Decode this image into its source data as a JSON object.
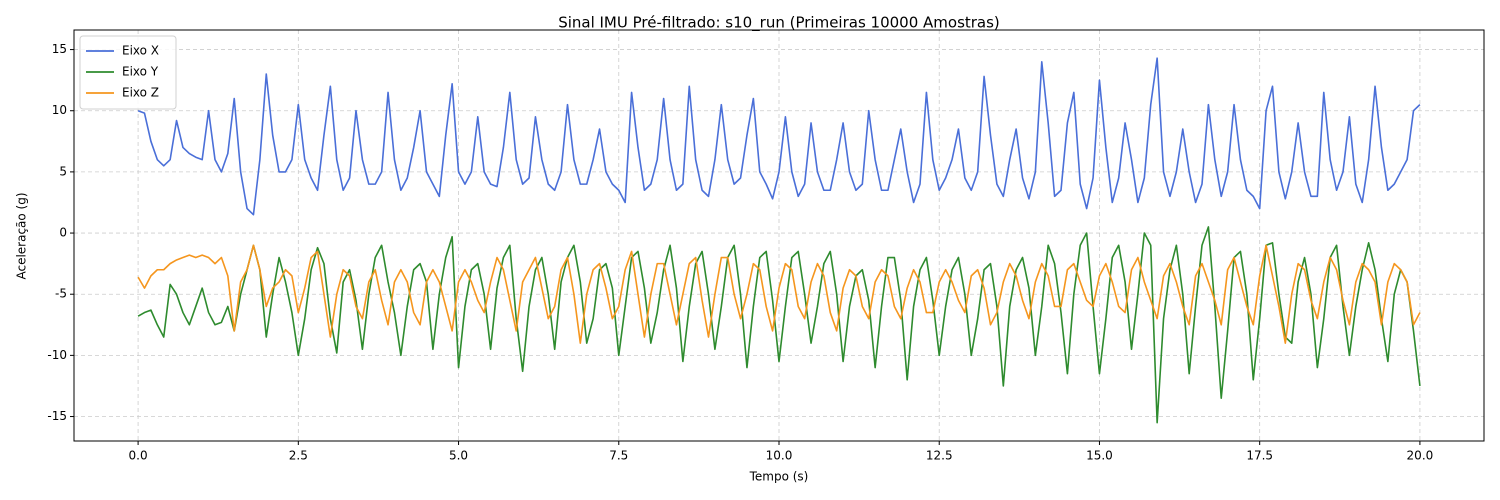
{
  "chart_data": {
    "type": "line",
    "title": "Sinal IMU Pré-filtrado: s10_run (Primeiras 10000 Amostras)",
    "x_label": "Tempo (s)",
    "y_label": "Aceleração (g)",
    "xlim": [
      -1.0,
      21.0
    ],
    "ylim": [
      -17.0,
      16.6
    ],
    "xticks": [
      {
        "value": 0,
        "label": "0.0"
      },
      2.5,
      {
        "value": 5,
        "label": "5.0"
      },
      7.5,
      {
        "value": 10,
        "label": "10.0"
      },
      12.5,
      {
        "value": 15,
        "label": "15.0"
      },
      17.5,
      {
        "value": 20,
        "label": "20.0"
      }
    ],
    "yticks": [
      -15,
      -10,
      -5,
      0,
      5,
      10,
      15
    ],
    "grid": true,
    "legend": "upper left",
    "x": [
      0,
      0.1,
      0.2,
      0.3,
      0.4,
      0.5,
      0.6,
      0.7,
      0.8,
      0.9,
      1,
      1.1,
      1.2,
      1.3,
      1.4,
      1.5,
      1.6,
      1.7,
      1.8,
      1.9,
      2,
      2.1,
      2.2,
      2.3,
      2.4,
      2.5,
      2.6,
      2.7,
      2.8,
      2.9,
      3,
      3.1,
      3.2,
      3.3,
      3.4,
      3.5,
      3.6,
      3.7,
      3.8,
      3.9,
      4,
      4.1,
      4.2,
      4.3,
      4.4,
      4.5,
      4.6,
      4.7,
      4.8,
      4.9,
      5,
      5.1,
      5.2,
      5.3,
      5.4,
      5.5,
      5.6,
      5.7,
      5.8,
      5.9,
      6,
      6.1,
      6.2,
      6.3,
      6.4,
      6.5,
      6.6,
      6.7,
      6.8,
      6.9,
      7,
      7.1,
      7.2,
      7.3,
      7.4,
      7.5,
      7.6,
      7.7,
      7.8,
      7.9,
      8,
      8.1,
      8.2,
      8.3,
      8.4,
      8.5,
      8.6,
      8.7,
      8.8,
      8.9,
      9,
      9.1,
      9.2,
      9.3,
      9.4,
      9.5,
      9.6,
      9.7,
      9.8,
      9.9,
      10,
      10.1,
      10.2,
      10.3,
      10.4,
      10.5,
      10.6,
      10.7,
      10.8,
      10.9,
      11,
      11.1,
      11.2,
      11.3,
      11.4,
      11.5,
      11.6,
      11.7,
      11.8,
      11.9,
      12,
      12.1,
      12.2,
      12.3,
      12.4,
      12.5,
      12.6,
      12.7,
      12.8,
      12.9,
      13,
      13.1,
      13.2,
      13.3,
      13.4,
      13.5,
      13.6,
      13.7,
      13.8,
      13.9,
      14,
      14.1,
      14.2,
      14.3,
      14.4,
      14.5,
      14.6,
      14.7,
      14.8,
      14.9,
      15,
      15.1,
      15.2,
      15.3,
      15.4,
      15.5,
      15.6,
      15.7,
      15.8,
      15.9,
      16,
      16.1,
      16.2,
      16.3,
      16.4,
      16.5,
      16.6,
      16.7,
      16.8,
      16.9,
      17,
      17.1,
      17.2,
      17.3,
      17.4,
      17.5,
      17.6,
      17.7,
      17.8,
      17.9,
      18,
      18.1,
      18.2,
      18.3,
      18.4,
      18.5,
      18.6,
      18.7,
      18.8,
      18.9,
      19,
      19.1,
      19.2,
      19.3,
      19.4,
      19.5,
      19.6,
      19.7,
      19.8,
      19.9,
      20
    ],
    "series": [
      {
        "name": "Eixo X",
        "color": "#4a6fd8",
        "values": [
          10,
          9.8,
          7.5,
          6,
          5.5,
          6,
          9.2,
          7,
          6.5,
          6.2,
          6,
          10,
          6,
          5,
          6.5,
          11,
          5,
          2,
          1.5,
          6,
          13,
          8,
          5,
          5,
          6,
          10.5,
          6,
          4.5,
          3.5,
          8,
          12,
          6,
          3.5,
          4.5,
          10,
          6,
          4,
          4,
          5,
          11.5,
          6,
          3.5,
          4.5,
          7,
          10,
          5,
          4,
          3,
          8,
          12.2,
          5,
          4,
          5,
          9.5,
          5,
          4,
          3.8,
          7,
          11.5,
          6,
          4,
          4.5,
          9.5,
          6,
          4,
          3.5,
          5,
          10.5,
          6,
          4,
          4,
          6,
          8.5,
          5,
          4,
          3.5,
          2.5,
          11.5,
          7,
          3.5,
          4,
          6,
          11,
          6,
          3.5,
          4,
          12,
          6,
          3.5,
          3,
          6,
          10.5,
          6,
          4,
          4.5,
          8,
          11,
          5,
          4,
          2.8,
          5,
          9.5,
          5,
          3,
          4,
          9,
          5,
          3.5,
          3.5,
          6,
          9,
          5,
          3.5,
          4,
          10,
          6,
          3.5,
          3.5,
          6,
          8.5,
          5,
          2.5,
          4,
          11.5,
          6,
          3.5,
          4.5,
          6,
          8.5,
          4.5,
          3.5,
          5,
          12.8,
          8,
          4,
          3,
          6,
          8.5,
          4.5,
          2.8,
          5,
          14,
          9,
          3,
          3.5,
          9,
          11.5,
          4,
          2,
          4.5,
          12.5,
          7,
          2.5,
          4.5,
          9,
          6,
          2.5,
          4.5,
          10.5,
          14.3,
          5,
          3,
          5,
          8.5,
          5,
          2.5,
          4,
          10.5,
          6,
          3,
          5,
          10.5,
          6,
          3.5,
          3,
          2,
          10,
          12,
          5,
          2.8,
          5,
          9,
          5,
          3,
          3,
          11.5,
          6,
          3.5,
          5,
          9.5,
          4,
          2.5,
          6,
          12,
          7,
          3.5,
          4,
          5,
          6,
          10,
          10.5
        ]
      },
      {
        "name": "Eixo Y",
        "color": "#2e8b2e",
        "values": [
          -6.8,
          -6.5,
          -6.3,
          -7.5,
          -8.5,
          -4.2,
          -5,
          -6.5,
          -7.5,
          -6,
          -4.5,
          -6.5,
          -7.5,
          -7.3,
          -6,
          -8,
          -5,
          -3,
          -1,
          -3,
          -8.5,
          -5,
          -2,
          -4,
          -6.5,
          -10,
          -7,
          -3,
          -1.2,
          -2.5,
          -7,
          -9.8,
          -4,
          -3,
          -5.5,
          -9.5,
          -5,
          -2,
          -1,
          -4,
          -6.5,
          -10,
          -6,
          -3,
          -2.5,
          -4,
          -9.5,
          -5,
          -2,
          -0.3,
          -11,
          -6,
          -3,
          -2.5,
          -5,
          -9.5,
          -4.5,
          -2,
          -1,
          -7,
          -11.3,
          -6,
          -3,
          -2,
          -5,
          -9.5,
          -4,
          -2,
          -1,
          -4,
          -9,
          -7,
          -3,
          -2.5,
          -4.5,
          -10,
          -6,
          -2,
          -1.5,
          -4.5,
          -9,
          -6.5,
          -3,
          -1,
          -4.5,
          -10.5,
          -6,
          -2.5,
          -1.5,
          -5,
          -9.5,
          -6,
          -2,
          -1,
          -5,
          -11,
          -6,
          -2,
          -1.5,
          -5.5,
          -10.5,
          -6,
          -2,
          -1.5,
          -5,
          -9,
          -6,
          -2.5,
          -1.5,
          -5,
          -10.5,
          -6,
          -3.5,
          -3,
          -5.5,
          -11,
          -6,
          -2,
          -2,
          -5.5,
          -12,
          -6,
          -3,
          -2,
          -5.5,
          -10,
          -6,
          -3,
          -2,
          -5,
          -10,
          -7,
          -3,
          -2.5,
          -6,
          -12.5,
          -6,
          -3,
          -2,
          -4.5,
          -10,
          -6,
          -1,
          -2.5,
          -6.5,
          -11.5,
          -5,
          -1,
          0,
          -6,
          -11.5,
          -7,
          -2,
          -1,
          -4,
          -9.5,
          -5,
          0,
          -1,
          -15.5,
          -7,
          -3,
          -1,
          -5,
          -11.5,
          -6,
          -1,
          0.5,
          -6,
          -13.5,
          -8,
          -2,
          -1.5,
          -5,
          -12,
          -7,
          -1,
          -0.8,
          -5,
          -8.5,
          -9,
          -4,
          -2,
          -5,
          -11,
          -7,
          -2,
          -1,
          -6,
          -10,
          -6,
          -3,
          -0.8,
          -3,
          -7,
          -10.5,
          -5,
          -3,
          -4,
          -8,
          -12.5
        ]
      },
      {
        "name": "Eixo Z",
        "color": "#f5961e",
        "values": [
          -3.6,
          -4.5,
          -3.5,
          -3,
          -3,
          -2.5,
          -2.2,
          -2,
          -1.8,
          -2,
          -1.8,
          -2,
          -2.5,
          -2,
          -3.5,
          -8,
          -4,
          -3,
          -1,
          -3,
          -6,
          -4.5,
          -4,
          -3,
          -3.5,
          -6.5,
          -4.5,
          -2,
          -1.5,
          -5,
          -8.5,
          -5,
          -3,
          -3.5,
          -6,
          -7,
          -4,
          -3,
          -5.5,
          -7.5,
          -4,
          -3,
          -4,
          -6.5,
          -7.5,
          -4,
          -3,
          -4,
          -6,
          -8,
          -4,
          -3,
          -4,
          -5.5,
          -6.5,
          -4,
          -2,
          -3,
          -5.5,
          -8,
          -4,
          -3,
          -2,
          -4.5,
          -7,
          -6,
          -3,
          -2,
          -5,
          -9,
          -5,
          -3,
          -2.5,
          -4.5,
          -7,
          -6,
          -3,
          -1.5,
          -5,
          -8.5,
          -5,
          -2.5,
          -2.5,
          -5,
          -7.5,
          -5,
          -2.5,
          -2,
          -5.5,
          -8.5,
          -5,
          -2,
          -2,
          -5,
          -7,
          -5,
          -2.5,
          -3,
          -6,
          -8,
          -4.5,
          -2.5,
          -3,
          -6,
          -7,
          -4,
          -2.5,
          -3.5,
          -6.5,
          -8,
          -4.5,
          -3,
          -3.5,
          -6,
          -7,
          -4,
          -3,
          -3.5,
          -6,
          -7,
          -4.5,
          -3,
          -4,
          -6.5,
          -6.5,
          -4,
          -3,
          -4,
          -5.5,
          -6.5,
          -3.5,
          -3,
          -4.5,
          -7.5,
          -6.5,
          -4,
          -2.5,
          -3.5,
          -5.5,
          -7,
          -4,
          -2.5,
          -3.5,
          -6,
          -6,
          -3,
          -2.5,
          -4,
          -5.5,
          -6,
          -3.5,
          -2.5,
          -4,
          -6,
          -6.5,
          -3,
          -2,
          -4,
          -5.5,
          -7,
          -3.5,
          -2.5,
          -4,
          -6,
          -7.5,
          -3.5,
          -2.5,
          -4,
          -5.5,
          -7.5,
          -3,
          -2,
          -4,
          -6,
          -7.5,
          -3.5,
          -1,
          -3.5,
          -6,
          -9,
          -5,
          -2.5,
          -3,
          -5.5,
          -7,
          -4,
          -2,
          -3,
          -5.5,
          -7.5,
          -4,
          -2.5,
          -3,
          -4,
          -7.5,
          -4,
          -2.5,
          -3,
          -4,
          -7.5,
          -6.5
        ]
      }
    ]
  }
}
